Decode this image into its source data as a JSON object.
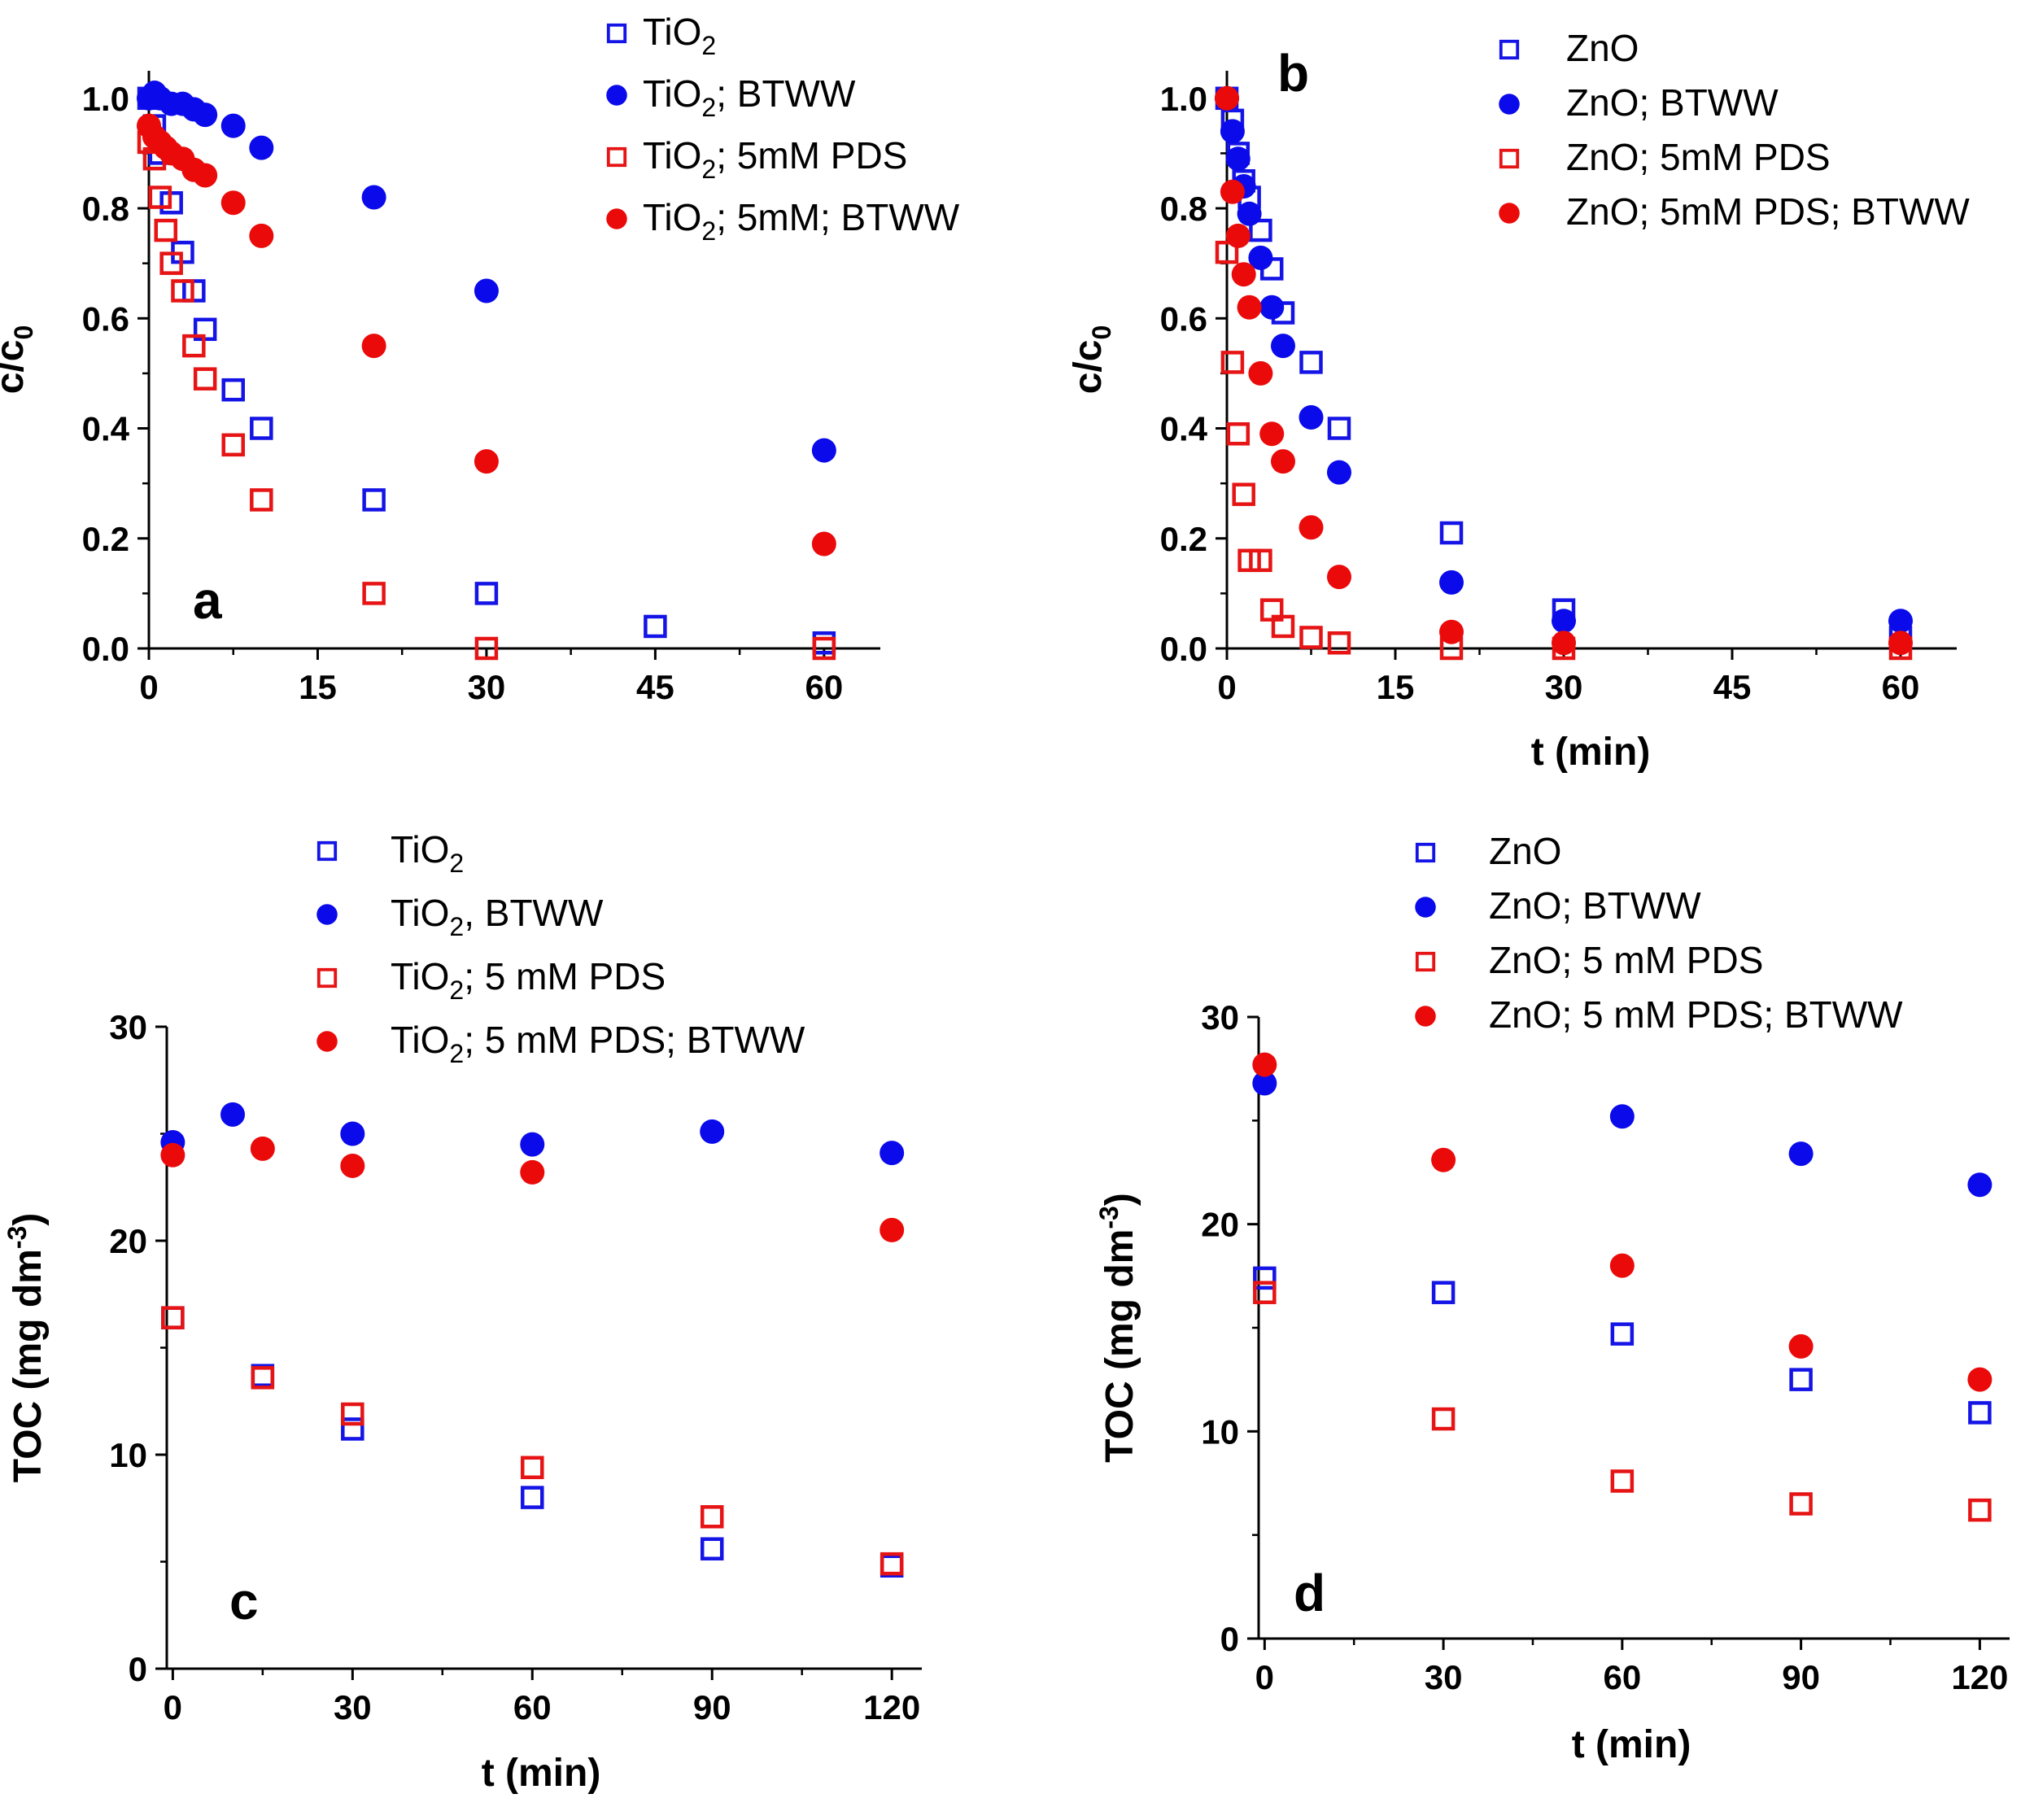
{
  "chart_data": [
    {
      "type": "scatter",
      "panel": "a",
      "panel_label": "a",
      "xlabel": "",
      "ylabel": {
        "main": "c/c",
        "sub": "0"
      },
      "xlim": [
        0,
        65
      ],
      "ylim": [
        0,
        1.05
      ],
      "x_ticks": [
        0,
        15,
        30,
        45,
        60
      ],
      "y_ticks": [
        0.0,
        0.2,
        0.4,
        0.6,
        0.8,
        1.0
      ],
      "y_tick_decimals": 1,
      "legend_position": "top-right",
      "series": [
        {
          "name": "TiO2",
          "legend": {
            "parts": [
              {
                "t": "TiO"
              },
              {
                "t": "2",
                "sub": true
              }
            ]
          },
          "marker": "open-square",
          "color": "#1414e6",
          "x": [
            0,
            0.5,
            1,
            2,
            3,
            4,
            5,
            7.5,
            10,
            20,
            30,
            45,
            60
          ],
          "y": [
            1.0,
            0.95,
            0.9,
            0.81,
            0.72,
            0.65,
            0.58,
            0.47,
            0.4,
            0.27,
            0.1,
            0.04,
            0.01
          ]
        },
        {
          "name": "TiO2; BTWW",
          "legend": {
            "parts": [
              {
                "t": "TiO"
              },
              {
                "t": "2",
                "sub": true
              },
              {
                "t": "; BTWW"
              }
            ]
          },
          "marker": "filled-circle",
          "color": "#0a0aeb",
          "x": [
            0,
            0.5,
            1,
            2,
            3,
            4,
            5,
            7.5,
            10,
            20,
            30,
            60
          ],
          "y": [
            1.0,
            1.01,
            1.0,
            0.99,
            0.99,
            0.98,
            0.97,
            0.95,
            0.91,
            0.82,
            0.65,
            0.36
          ]
        },
        {
          "name": "TiO2; 5mM PDS",
          "legend": {
            "parts": [
              {
                "t": "TiO"
              },
              {
                "t": "2",
                "sub": true
              },
              {
                "t": "; 5mM PDS"
              }
            ]
          },
          "marker": "open-square",
          "color": "#e61414",
          "x": [
            0,
            0.5,
            1,
            1.5,
            2,
            3,
            4,
            5,
            7.5,
            10,
            20,
            30,
            60
          ],
          "y": [
            0.92,
            0.89,
            0.82,
            0.76,
            0.7,
            0.65,
            0.55,
            0.49,
            0.37,
            0.27,
            0.1,
            0.0,
            0.0
          ]
        },
        {
          "name": "TiO2; 5mM; BTWW",
          "legend": {
            "parts": [
              {
                "t": "TiO"
              },
              {
                "t": "2",
                "sub": true
              },
              {
                "t": "; 5mM; BTWW"
              }
            ]
          },
          "marker": "filled-circle",
          "color": "#eb0a0a",
          "x": [
            0,
            0.5,
            1,
            1.5,
            2,
            3,
            4,
            5,
            7.5,
            10,
            20,
            30,
            60
          ],
          "y": [
            0.95,
            0.93,
            0.92,
            0.91,
            0.9,
            0.89,
            0.87,
            0.86,
            0.81,
            0.75,
            0.55,
            0.34,
            0.19
          ]
        }
      ]
    },
    {
      "type": "scatter",
      "panel": "b",
      "panel_label": "b",
      "xlabel": "t (min)",
      "ylabel": {
        "main": "c/c",
        "sub": "0"
      },
      "xlim": [
        0,
        65
      ],
      "ylim": [
        0,
        1.05
      ],
      "x_ticks": [
        0,
        15,
        30,
        45,
        60
      ],
      "y_ticks": [
        0.0,
        0.2,
        0.4,
        0.6,
        0.8,
        1.0
      ],
      "y_tick_decimals": 1,
      "legend_position": "top-right",
      "series": [
        {
          "name": "ZnO",
          "legend": {
            "parts": [
              {
                "t": "ZnO"
              }
            ]
          },
          "marker": "open-square",
          "color": "#1414e6",
          "x": [
            0,
            0.5,
            1,
            1.5,
            2,
            3,
            4,
            5,
            7.5,
            10,
            20,
            30,
            60
          ],
          "y": [
            1.0,
            0.96,
            0.9,
            0.85,
            0.82,
            0.76,
            0.69,
            0.61,
            0.52,
            0.4,
            0.21,
            0.07,
            0.02
          ]
        },
        {
          "name": "ZnO; BTWW",
          "legend": {
            "parts": [
              {
                "t": "ZnO; BTWW"
              }
            ]
          },
          "marker": "filled-circle",
          "color": "#0a0aeb",
          "x": [
            0,
            0.5,
            1,
            1.5,
            2,
            3,
            4,
            5,
            7.5,
            10,
            20,
            30,
            60
          ],
          "y": [
            1.0,
            0.94,
            0.89,
            0.84,
            0.79,
            0.71,
            0.62,
            0.55,
            0.42,
            0.32,
            0.12,
            0.05,
            0.05
          ]
        },
        {
          "name": "ZnO; 5mM PDS",
          "legend": {
            "parts": [
              {
                "t": "ZnO; 5mM PDS"
              }
            ]
          },
          "marker": "open-square",
          "color": "#e61414",
          "x": [
            0,
            0.5,
            1,
            1.5,
            2,
            3,
            4,
            5,
            7.5,
            10,
            20,
            30,
            60
          ],
          "y": [
            0.72,
            0.52,
            0.39,
            0.28,
            0.16,
            0.16,
            0.07,
            0.04,
            0.02,
            0.01,
            0.0,
            0.0,
            0.0
          ]
        },
        {
          "name": "ZnO; 5mM PDS; BTWW",
          "legend": {
            "parts": [
              {
                "t": "ZnO; 5mM PDS; BTWW"
              }
            ]
          },
          "marker": "filled-circle",
          "color": "#eb0a0a",
          "x": [
            0,
            0.5,
            1,
            1.5,
            2,
            3,
            4,
            5,
            7.5,
            10,
            20,
            30,
            60
          ],
          "y": [
            1.0,
            0.83,
            0.75,
            0.68,
            0.62,
            0.5,
            0.39,
            0.34,
            0.22,
            0.13,
            0.03,
            0.01,
            0.01
          ]
        }
      ]
    },
    {
      "type": "scatter",
      "panel": "c",
      "panel_label": "c",
      "xlabel": "t (min)",
      "ylabel": {
        "main": "TOC (mg dm",
        "sup": "-3",
        "tail": ")"
      },
      "xlim": [
        -1,
        125
      ],
      "ylim": [
        0,
        30
      ],
      "x_ticks": [
        0,
        30,
        60,
        90,
        120
      ],
      "y_ticks": [
        0,
        10,
        20,
        30
      ],
      "y_tick_decimals": 0,
      "legend_position": "top",
      "series": [
        {
          "name": "TiO2",
          "legend": {
            "parts": [
              {
                "t": "TiO"
              },
              {
                "t": "2",
                "sub": true
              }
            ]
          },
          "marker": "open-square",
          "color": "#1414e6",
          "x": [
            0,
            15,
            30,
            60,
            90,
            120
          ],
          "y": [
            16.4,
            13.7,
            11.2,
            8.0,
            5.6,
            4.8
          ]
        },
        {
          "name": "TiO2, BTWW",
          "legend": {
            "parts": [
              {
                "t": "TiO"
              },
              {
                "t": "2",
                "sub": true
              },
              {
                "t": ", BTWW"
              }
            ]
          },
          "marker": "filled-circle",
          "color": "#0a0aeb",
          "x": [
            0,
            10,
            30,
            60,
            90,
            120
          ],
          "y": [
            24.6,
            25.9,
            25.0,
            24.5,
            25.1,
            24.1
          ]
        },
        {
          "name": "TiO2; 5 mM PDS",
          "legend": {
            "parts": [
              {
                "t": "TiO"
              },
              {
                "t": "2",
                "sub": true
              },
              {
                "t": "; 5 mM PDS"
              }
            ]
          },
          "marker": "open-square",
          "color": "#e61414",
          "x": [
            0,
            15,
            30,
            60,
            90,
            120
          ],
          "y": [
            16.4,
            13.6,
            11.9,
            9.4,
            7.1,
            4.9
          ]
        },
        {
          "name": "TiO2; 5 mM PDS; BTWW",
          "legend": {
            "parts": [
              {
                "t": "TiO"
              },
              {
                "t": "2",
                "sub": true
              },
              {
                "t": "; 5 mM PDS; BTWW"
              }
            ]
          },
          "marker": "filled-circle",
          "color": "#eb0a0a",
          "x": [
            0,
            15,
            30,
            60,
            120
          ],
          "y": [
            24.0,
            24.3,
            23.5,
            23.2,
            20.5
          ]
        }
      ]
    },
    {
      "type": "scatter",
      "panel": "d",
      "panel_label": "d",
      "xlabel": "t (min)",
      "ylabel": {
        "main": "TOC (mg dm",
        "sup": "-3",
        "tail": ")"
      },
      "xlim": [
        -1,
        125
      ],
      "ylim": [
        0,
        30
      ],
      "x_ticks": [
        0,
        30,
        60,
        90,
        120
      ],
      "y_ticks": [
        0,
        10,
        20,
        30
      ],
      "y_tick_decimals": 0,
      "legend_position": "top",
      "series": [
        {
          "name": "ZnO",
          "legend": {
            "parts": [
              {
                "t": "ZnO"
              }
            ]
          },
          "marker": "open-square",
          "color": "#1414e6",
          "x": [
            0,
            30,
            60,
            90,
            120
          ],
          "y": [
            17.4,
            16.7,
            14.7,
            12.5,
            10.9
          ]
        },
        {
          "name": "ZnO; BTWW",
          "legend": {
            "parts": [
              {
                "t": "ZnO; BTWW"
              }
            ]
          },
          "marker": "filled-circle",
          "color": "#0a0aeb",
          "x": [
            0,
            60,
            90,
            120
          ],
          "y": [
            26.8,
            25.2,
            23.4,
            21.9
          ]
        },
        {
          "name": "ZnO; 5 mM PDS",
          "legend": {
            "parts": [
              {
                "t": "ZnO; 5 mM PDS"
              }
            ]
          },
          "marker": "open-square",
          "color": "#e61414",
          "x": [
            0,
            30,
            60,
            90,
            120
          ],
          "y": [
            16.7,
            10.6,
            7.6,
            6.5,
            6.2
          ]
        },
        {
          "name": "ZnO; 5 mM PDS; BTWW",
          "legend": {
            "parts": [
              {
                "t": "ZnO; 5 mM PDS; BTWW"
              }
            ]
          },
          "marker": "filled-circle",
          "color": "#eb0a0a",
          "x": [
            0,
            30,
            60,
            90,
            120
          ],
          "y": [
            27.7,
            23.1,
            18.0,
            14.1,
            12.5
          ]
        }
      ]
    }
  ]
}
